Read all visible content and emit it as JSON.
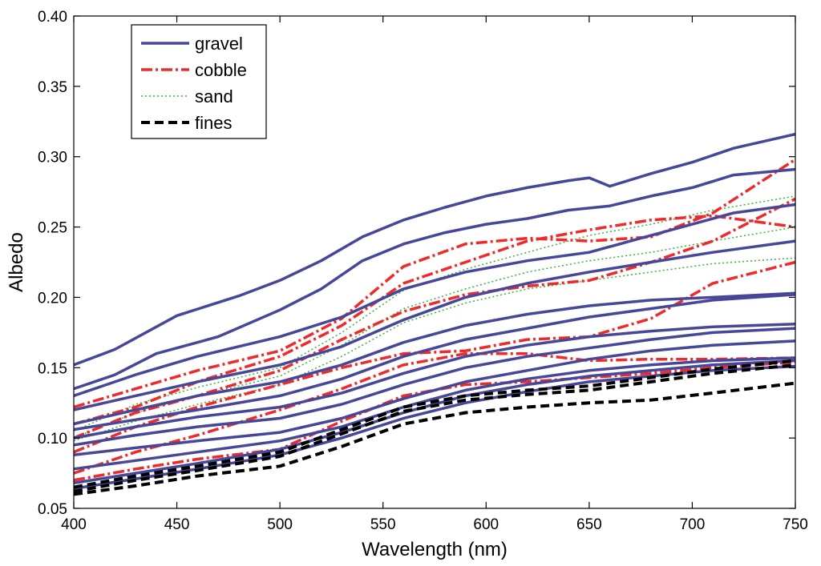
{
  "chart_data": {
    "type": "line",
    "title": "",
    "xlabel": "Wavelength (nm)",
    "ylabel": "Albedo",
    "xlim": [
      400,
      750
    ],
    "ylim": [
      0.05,
      0.4
    ],
    "xticks": [
      400,
      450,
      500,
      550,
      600,
      650,
      700,
      750
    ],
    "yticks": [
      0.05,
      0.1,
      0.15,
      0.2,
      0.25,
      0.3,
      0.35,
      0.4
    ],
    "xtick_labels": [
      "400",
      "450",
      "500",
      "550",
      "600",
      "650",
      "700",
      "750"
    ],
    "ytick_labels": [
      "0.05",
      "0.10",
      "0.15",
      "0.20",
      "0.25",
      "0.30",
      "0.35",
      "0.40"
    ],
    "grid": false,
    "legend_position": "top-left",
    "legend": [
      {
        "key": "gravel",
        "label": "gravel"
      },
      {
        "key": "cobble",
        "label": "cobble"
      },
      {
        "key": "sand",
        "label": "sand"
      },
      {
        "key": "fines",
        "label": "fines"
      }
    ],
    "styles": {
      "gravel": {
        "color": "#47479a",
        "dash": "",
        "width": 3.5
      },
      "cobble": {
        "color": "#ee2a2a",
        "dash": "14 4 3 4",
        "width": 3.5
      },
      "sand": {
        "color": "#3bb03b",
        "dash": "2 3",
        "width": 1.5
      },
      "fines": {
        "color": "#000000",
        "dash": "11 6",
        "width": 4
      }
    },
    "series": [
      {
        "name": "gravel",
        "x": [
          400,
          420,
          450,
          480,
          500,
          520,
          540,
          560,
          580,
          600,
          620,
          640,
          650,
          660,
          680,
          700,
          720,
          750
        ],
        "y": [
          0.152,
          0.163,
          0.187,
          0.201,
          0.212,
          0.226,
          0.243,
          0.255,
          0.264,
          0.272,
          0.278,
          0.283,
          0.285,
          0.279,
          0.288,
          0.296,
          0.306,
          0.316
        ]
      },
      {
        "name": "gravel",
        "x": [
          400,
          420,
          440,
          470,
          500,
          520,
          540,
          560,
          580,
          600,
          620,
          640,
          660,
          680,
          700,
          720,
          750
        ],
        "y": [
          0.135,
          0.145,
          0.16,
          0.172,
          0.191,
          0.206,
          0.226,
          0.238,
          0.246,
          0.252,
          0.256,
          0.262,
          0.265,
          0.272,
          0.278,
          0.287,
          0.291
        ]
      },
      {
        "name": "gravel",
        "x": [
          400,
          430,
          460,
          500,
          530,
          560,
          590,
          620,
          650,
          670,
          700,
          720,
          750
        ],
        "y": [
          0.13,
          0.145,
          0.158,
          0.172,
          0.186,
          0.206,
          0.218,
          0.226,
          0.232,
          0.24,
          0.252,
          0.26,
          0.266
        ]
      },
      {
        "name": "gravel",
        "x": [
          400,
          430,
          460,
          500,
          530,
          560,
          590,
          620,
          650,
          680,
          710,
          750
        ],
        "y": [
          0.12,
          0.13,
          0.14,
          0.152,
          0.165,
          0.184,
          0.2,
          0.21,
          0.218,
          0.225,
          0.232,
          0.24
        ]
      },
      {
        "name": "gravel",
        "x": [
          400,
          430,
          460,
          500,
          530,
          560,
          590,
          620,
          650,
          680,
          710,
          750
        ],
        "y": [
          0.11,
          0.12,
          0.13,
          0.14,
          0.152,
          0.168,
          0.18,
          0.188,
          0.194,
          0.198,
          0.2,
          0.203
        ]
      },
      {
        "name": "gravel",
        "x": [
          400,
          430,
          460,
          500,
          530,
          560,
          590,
          620,
          650,
          680,
          710,
          750
        ],
        "y": [
          0.106,
          0.113,
          0.12,
          0.13,
          0.142,
          0.158,
          0.17,
          0.178,
          0.186,
          0.192,
          0.198,
          0.202
        ]
      },
      {
        "name": "gravel",
        "x": [
          400,
          430,
          460,
          500,
          530,
          560,
          590,
          620,
          650,
          680,
          710,
          750
        ],
        "y": [
          0.1,
          0.108,
          0.115,
          0.122,
          0.132,
          0.146,
          0.158,
          0.166,
          0.172,
          0.176,
          0.179,
          0.181
        ]
      },
      {
        "name": "gravel",
        "x": [
          400,
          430,
          460,
          500,
          530,
          560,
          590,
          620,
          650,
          680,
          710,
          750
        ],
        "y": [
          0.095,
          0.102,
          0.108,
          0.114,
          0.124,
          0.138,
          0.15,
          0.158,
          0.164,
          0.17,
          0.175,
          0.178
        ]
      },
      {
        "name": "gravel",
        "x": [
          400,
          430,
          460,
          500,
          530,
          560,
          590,
          620,
          650,
          680,
          710,
          750
        ],
        "y": [
          0.088,
          0.093,
          0.098,
          0.104,
          0.114,
          0.128,
          0.14,
          0.148,
          0.156,
          0.162,
          0.166,
          0.169
        ]
      },
      {
        "name": "gravel",
        "x": [
          400,
          430,
          460,
          500,
          530,
          560,
          590,
          620,
          650,
          680,
          710,
          750
        ],
        "y": [
          0.078,
          0.084,
          0.09,
          0.098,
          0.108,
          0.122,
          0.134,
          0.142,
          0.148,
          0.152,
          0.155,
          0.157
        ]
      },
      {
        "name": "gravel",
        "x": [
          400,
          430,
          460,
          500,
          530,
          560,
          590,
          620,
          650,
          680,
          710,
          750
        ],
        "y": [
          0.068,
          0.075,
          0.082,
          0.092,
          0.104,
          0.118,
          0.13,
          0.138,
          0.144,
          0.148,
          0.152,
          0.155
        ]
      },
      {
        "name": "gravel",
        "x": [
          400,
          430,
          460,
          500,
          530,
          560,
          590,
          620,
          650,
          680,
          710,
          750
        ],
        "y": [
          0.064,
          0.071,
          0.078,
          0.088,
          0.1,
          0.114,
          0.125,
          0.133,
          0.14,
          0.144,
          0.148,
          0.151
        ]
      },
      {
        "name": "cobble",
        "x": [
          400,
          430,
          460,
          500,
          530,
          560,
          590,
          620,
          650,
          680,
          710,
          750
        ],
        "y": [
          0.122,
          0.135,
          0.148,
          0.162,
          0.185,
          0.222,
          0.238,
          0.242,
          0.24,
          0.243,
          0.26,
          0.298
        ]
      },
      {
        "name": "cobble",
        "x": [
          400,
          430,
          460,
          500,
          530,
          560,
          590,
          620,
          650,
          680,
          710,
          750
        ],
        "y": [
          0.11,
          0.122,
          0.14,
          0.158,
          0.18,
          0.21,
          0.225,
          0.24,
          0.248,
          0.255,
          0.258,
          0.25
        ]
      },
      {
        "name": "cobble",
        "x": [
          400,
          430,
          460,
          500,
          530,
          560,
          590,
          620,
          650,
          680,
          710,
          750
        ],
        "y": [
          0.1,
          0.118,
          0.13,
          0.148,
          0.17,
          0.19,
          0.202,
          0.208,
          0.212,
          0.225,
          0.24,
          0.27
        ]
      },
      {
        "name": "cobble",
        "x": [
          400,
          430,
          460,
          500,
          530,
          560,
          590,
          620,
          650,
          680,
          710,
          750
        ],
        "y": [
          0.09,
          0.108,
          0.122,
          0.138,
          0.15,
          0.16,
          0.162,
          0.17,
          0.172,
          0.185,
          0.21,
          0.225
        ]
      },
      {
        "name": "cobble",
        "x": [
          400,
          430,
          460,
          500,
          530,
          560,
          590,
          620,
          650,
          680,
          710,
          750
        ],
        "y": [
          0.075,
          0.09,
          0.102,
          0.12,
          0.135,
          0.152,
          0.16,
          0.16,
          0.155,
          0.156,
          0.156,
          0.157
        ]
      },
      {
        "name": "cobble",
        "x": [
          400,
          430,
          460,
          500,
          530,
          560,
          590,
          620,
          650,
          680,
          710,
          750
        ],
        "y": [
          0.07,
          0.078,
          0.085,
          0.092,
          0.112,
          0.13,
          0.138,
          0.14,
          0.143,
          0.146,
          0.15,
          0.154
        ]
      },
      {
        "name": "sand",
        "x": [
          400,
          430,
          460,
          500,
          530,
          560,
          590,
          620,
          650,
          680,
          710,
          750
        ],
        "y": [
          0.105,
          0.124,
          0.136,
          0.15,
          0.175,
          0.205,
          0.22,
          0.232,
          0.244,
          0.252,
          0.262,
          0.272
        ]
      },
      {
        "name": "sand",
        "x": [
          400,
          430,
          460,
          500,
          530,
          560,
          590,
          620,
          650,
          680,
          710,
          750
        ],
        "y": [
          0.1,
          0.118,
          0.13,
          0.144,
          0.166,
          0.192,
          0.206,
          0.218,
          0.226,
          0.232,
          0.24,
          0.25
        ]
      },
      {
        "name": "sand",
        "x": [
          400,
          430,
          460,
          500,
          530,
          560,
          590,
          620,
          650,
          680,
          710,
          750
        ],
        "y": [
          0.098,
          0.112,
          0.124,
          0.138,
          0.158,
          0.182,
          0.196,
          0.206,
          0.212,
          0.218,
          0.224,
          0.228
        ]
      },
      {
        "name": "fines",
        "x": [
          400,
          430,
          460,
          500,
          530,
          560,
          590,
          620,
          650,
          680,
          710,
          750
        ],
        "y": [
          0.065,
          0.073,
          0.08,
          0.09,
          0.106,
          0.122,
          0.13,
          0.134,
          0.137,
          0.143,
          0.149,
          0.155
        ]
      },
      {
        "name": "fines",
        "x": [
          400,
          430,
          460,
          500,
          530,
          560,
          590,
          620,
          650,
          680,
          710,
          750
        ],
        "y": [
          0.062,
          0.07,
          0.077,
          0.087,
          0.103,
          0.119,
          0.127,
          0.131,
          0.134,
          0.14,
          0.146,
          0.152
        ]
      },
      {
        "name": "fines",
        "x": [
          400,
          430,
          460,
          500,
          530,
          560,
          590,
          620,
          650,
          680,
          710,
          750
        ],
        "y": [
          0.06,
          0.066,
          0.073,
          0.08,
          0.094,
          0.11,
          0.118,
          0.122,
          0.125,
          0.127,
          0.132,
          0.139
        ]
      }
    ]
  }
}
